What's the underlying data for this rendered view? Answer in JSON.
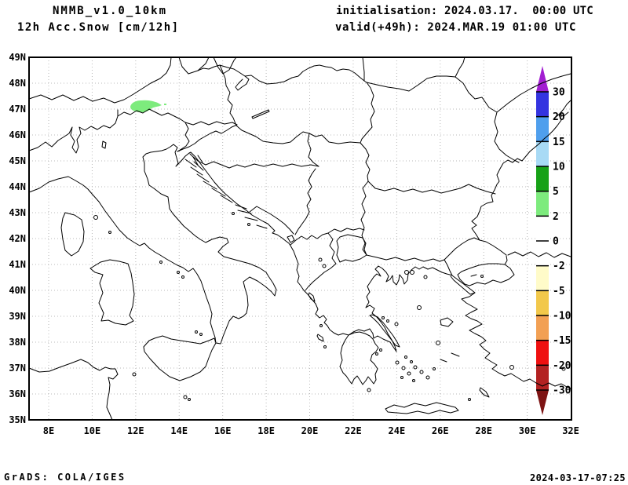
{
  "header": {
    "model_title": "NMMB_v1.0_10km",
    "field_title": "12h Acc.Snow [cm/12h]",
    "init_line": "initialisation: 2024.03.17.  00:00 UTC",
    "valid_line": "valid(+49h): 2024.MAR.19 01:00 UTC"
  },
  "footer": {
    "software_credit": "GrADS: COLA/IGES",
    "creation_timestamp": "2024-03-17-07:25"
  },
  "map": {
    "lat_tick_labels": [
      "49N",
      "48N",
      "47N",
      "46N",
      "45N",
      "44N",
      "43N",
      "42N",
      "41N",
      "40N",
      "39N",
      "38N",
      "37N",
      "36N",
      "35N"
    ],
    "lon_tick_labels": [
      "8E",
      "10E",
      "12E",
      "14E",
      "16E",
      "18E",
      "20E",
      "22E",
      "24E",
      "26E",
      "28E",
      "30E",
      "32E"
    ],
    "grid_color": "#b8b8b8",
    "snow_patch_color": "#7deb7d"
  },
  "colorbar": {
    "tick_labels": [
      "30",
      "20",
      "15",
      "10",
      "5",
      "2",
      "0",
      "-2",
      "-5",
      "-10",
      "-15",
      "-20",
      "-30"
    ],
    "segment_colors": [
      "#3434e0",
      "#4f9fed",
      "#a8daf5",
      "#17a117",
      "#7deb7d",
      "#ffffff",
      "#ffffff",
      "#fffbc9",
      "#f2c84b",
      "#f2a054",
      "#ef1010",
      "#b32222"
    ],
    "arrow_top_color": "#a21fd1",
    "arrow_bottom_color": "#7d1414"
  }
}
